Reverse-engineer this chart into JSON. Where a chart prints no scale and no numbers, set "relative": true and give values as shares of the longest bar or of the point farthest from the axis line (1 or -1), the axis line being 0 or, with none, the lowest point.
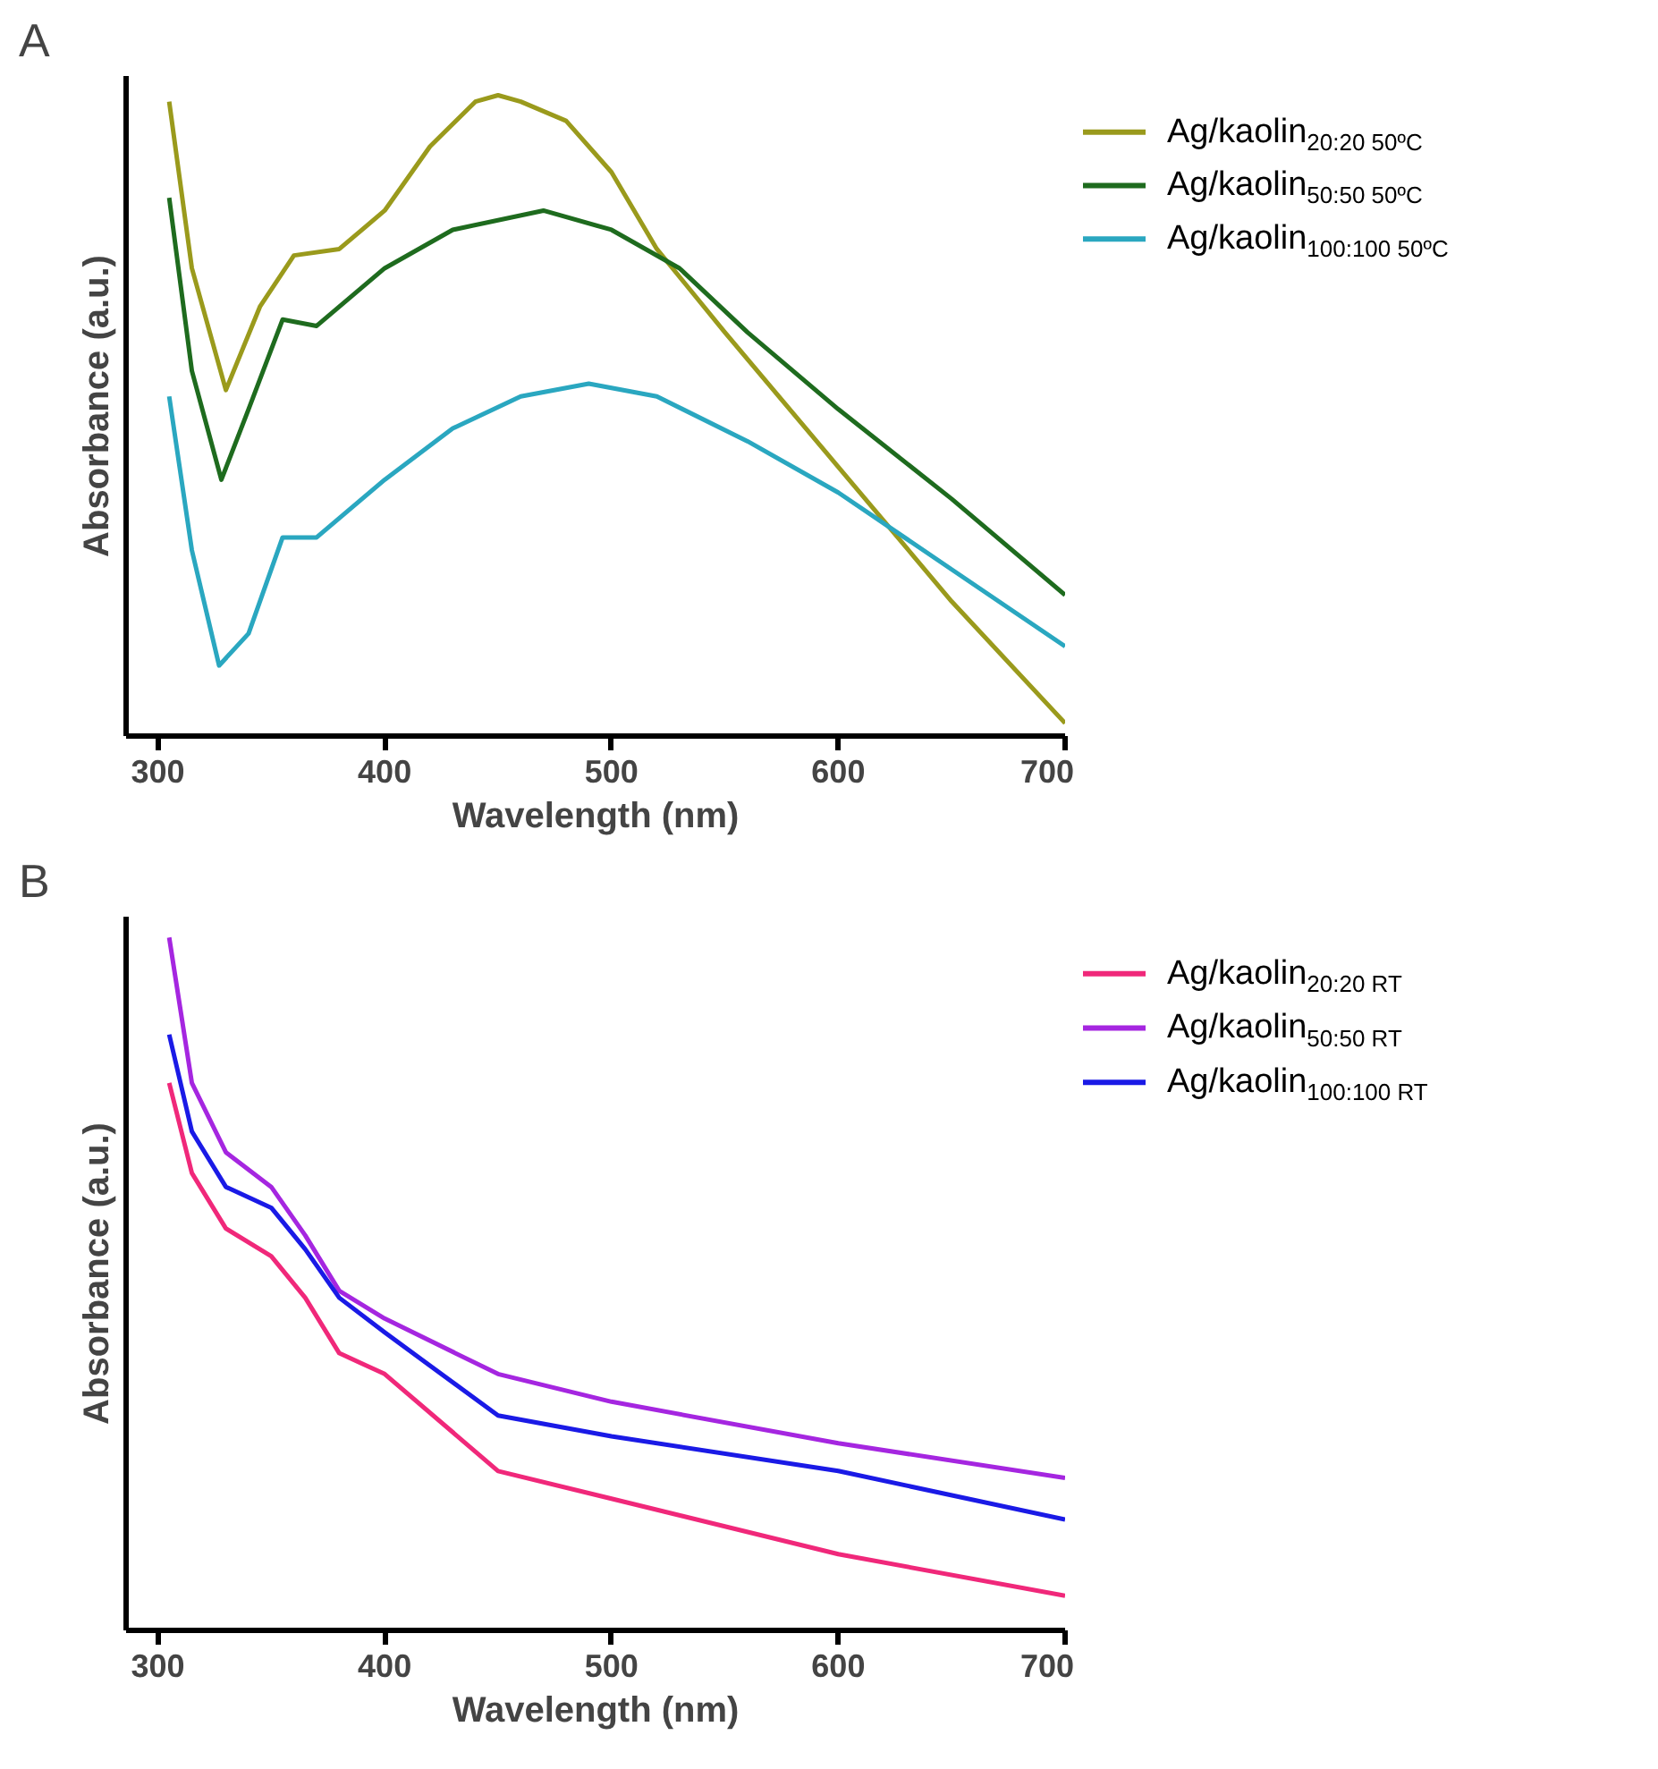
{
  "chart_data": [
    {
      "type": "line",
      "title": "A",
      "xlabel": "Wavelength (nm)",
      "ylabel": "Absorbance (a.u.)",
      "relative": true,
      "xlim": [
        286,
        700
      ],
      "xticks": [
        300,
        400,
        500,
        600,
        700
      ],
      "tick_labels": "x",
      "grid": false,
      "legend": "right",
      "marker": "none",
      "line_style": "solid",
      "series": [
        {
          "name": "Ag/kaolin$_{20:20 50ºC}$",
          "color": "#9a9a1c",
          "x": [
            305,
            315,
            330,
            345,
            360,
            380,
            400,
            420,
            440,
            450,
            460,
            480,
            500,
            520,
            550,
            600,
            650,
            700
          ],
          "values": [
            0.99,
            0.73,
            0.54,
            0.67,
            0.75,
            0.76,
            0.82,
            0.92,
            0.99,
            1.0,
            0.99,
            0.96,
            0.88,
            0.76,
            0.63,
            0.42,
            0.21,
            0.02
          ]
        },
        {
          "name": "Ag/kaolin$_{50:50 50ºC}$",
          "color": "#1e6b1e",
          "x": [
            305,
            315,
            328,
            340,
            355,
            370,
            400,
            430,
            470,
            500,
            530,
            560,
            600,
            650,
            700
          ],
          "values": [
            0.84,
            0.57,
            0.4,
            0.51,
            0.65,
            0.64,
            0.73,
            0.79,
            0.82,
            0.79,
            0.73,
            0.63,
            0.51,
            0.37,
            0.22
          ]
        },
        {
          "name": "Ag/kaolin$_{100:100 50ºC}$",
          "color": "#2aa7c0",
          "x": [
            305,
            315,
            327,
            340,
            355,
            370,
            400,
            430,
            460,
            490,
            520,
            560,
            600,
            650,
            700
          ],
          "values": [
            0.53,
            0.29,
            0.11,
            0.16,
            0.31,
            0.31,
            0.4,
            0.48,
            0.53,
            0.55,
            0.53,
            0.46,
            0.38,
            0.26,
            0.14
          ]
        }
      ]
    },
    {
      "type": "line",
      "title": "B",
      "xlabel": "Wavelength (nm)",
      "ylabel": "Absorbance (a.u.)",
      "relative": true,
      "xlim": [
        286,
        700
      ],
      "xticks": [
        300,
        400,
        500,
        600,
        700
      ],
      "tick_labels": "x",
      "grid": false,
      "legend": "right",
      "marker": "none",
      "line_style": "solid",
      "series": [
        {
          "name": "Ag/kaolin$_{20:20 RT}$",
          "color": "#f0287a",
          "x": [
            305,
            315,
            330,
            350,
            365,
            380,
            400,
            450,
            500,
            600,
            700
          ],
          "values": [
            0.79,
            0.66,
            0.58,
            0.54,
            0.48,
            0.4,
            0.37,
            0.23,
            0.19,
            0.11,
            0.05
          ]
        },
        {
          "name": "Ag/kaolin$_{50:50 RT}$",
          "color": "#a526e0",
          "x": [
            305,
            315,
            330,
            350,
            365,
            380,
            400,
            450,
            500,
            600,
            700
          ],
          "values": [
            1.0,
            0.79,
            0.69,
            0.64,
            0.57,
            0.49,
            0.45,
            0.37,
            0.33,
            0.27,
            0.22
          ]
        },
        {
          "name": "Ag/kaolin$_{100:100 RT}$",
          "color": "#1a1ae6",
          "x": [
            305,
            315,
            330,
            350,
            365,
            380,
            400,
            450,
            500,
            600,
            700
          ],
          "values": [
            0.86,
            0.72,
            0.64,
            0.61,
            0.55,
            0.48,
            0.43,
            0.31,
            0.28,
            0.23,
            0.16
          ]
        }
      ]
    }
  ]
}
